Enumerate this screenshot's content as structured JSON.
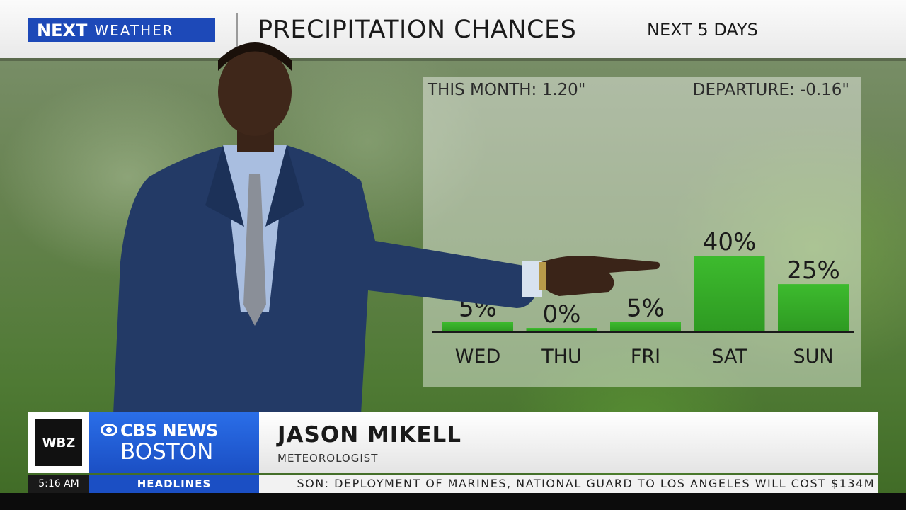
{
  "header": {
    "logo_next": "NEXT",
    "logo_weather": "WEATHER",
    "title": "PRECIPITATION CHANCES",
    "subtitle": "NEXT 5 DAYS"
  },
  "panel": {
    "this_month": "THIS MONTH:  1.20\"",
    "departure": "DEPARTURE:  -0.16\""
  },
  "chart_data": {
    "type": "bar",
    "title": "PRECIPITATION CHANCES",
    "subtitle": "NEXT 5 DAYS",
    "categories": [
      "WED",
      "THU",
      "FRI",
      "SAT",
      "SUN"
    ],
    "values": [
      5,
      0,
      5,
      40,
      25
    ],
    "value_labels": [
      "5%",
      "0%",
      "5%",
      "40%",
      "25%"
    ],
    "unit": "%",
    "ylim": [
      0,
      40
    ],
    "grid": false,
    "legend": "none",
    "bar_color": "#3dbb2e",
    "bar_color_dark": "#2e9a22"
  },
  "lower_third": {
    "station": "WBZ",
    "network": "CBS NEWS",
    "city": "BOSTON",
    "name": "JASON MIKELL",
    "role": "METEOROLOGIST"
  },
  "ticker": {
    "time": "5:16 AM",
    "section": "HEADLINES",
    "text": "SON: DEPLOYMENT OF MARINES, NATIONAL GUARD TO LOS ANGELES WILL COST $134M"
  },
  "icons": [
    "cbs-eye-icon"
  ]
}
